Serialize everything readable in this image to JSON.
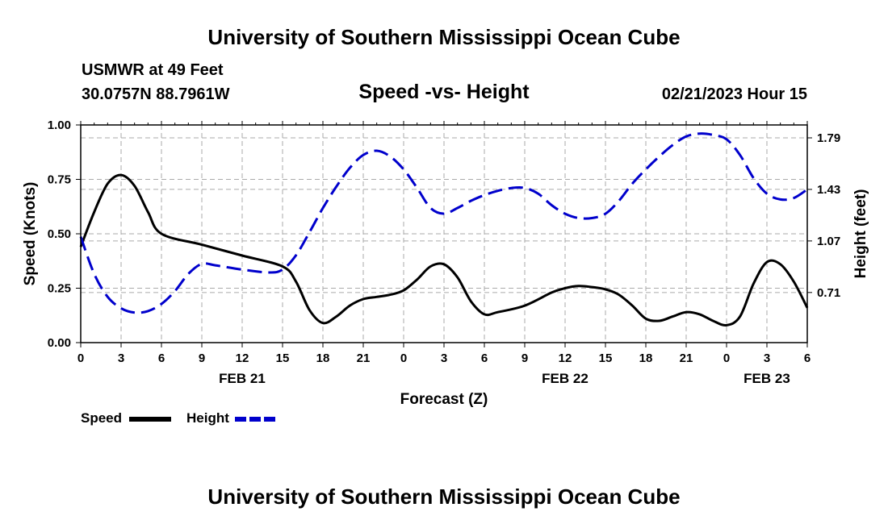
{
  "header": {
    "title": "University of Southern Mississippi Ocean Cube",
    "station": "USMWR at 49 Feet",
    "coords": "30.0757N  88.7961W",
    "subtitle": "Speed -vs- Height",
    "datetime": "02/21/2023 Hour 15"
  },
  "footer": {
    "title": "University of Southern Mississippi Ocean Cube"
  },
  "colors": {
    "speed": "#000000",
    "height": "#0000cc",
    "grid": "#aaaaaa"
  },
  "chart_data": {
    "type": "line",
    "title": "Speed -vs- Height",
    "xlabel": "Forecast (Z)",
    "ylabel": "Speed (Knots)",
    "y2label": "Height (feet)",
    "xlim": [
      0,
      54
    ],
    "ylim": [
      0,
      1
    ],
    "y2lim": [
      0.36,
      1.88
    ],
    "x_ticks": [
      0,
      3,
      6,
      9,
      12,
      15,
      18,
      21,
      24,
      27,
      30,
      33,
      36,
      39,
      42,
      45,
      48,
      51,
      54
    ],
    "x_tick_labels": [
      "0",
      "3",
      "6",
      "9",
      "12",
      "15",
      "18",
      "21",
      "0",
      "3",
      "6",
      "9",
      "12",
      "15",
      "18",
      "21",
      "0",
      "3",
      "6"
    ],
    "date_labels": [
      {
        "x": 12,
        "label": "FEB 21"
      },
      {
        "x": 36,
        "label": "FEB 22"
      },
      {
        "x": 51,
        "label": "FEB 23"
      }
    ],
    "y_ticks": [
      0,
      0.25,
      0.5,
      0.75,
      1
    ],
    "y_tick_labels": [
      "0.00",
      "0.25",
      "0.50",
      "0.75",
      "1.00"
    ],
    "y2_ticks": [
      0.71,
      1.07,
      1.43,
      1.79
    ],
    "y2_tick_labels": [
      "0.71",
      "1.07",
      "1.43",
      "1.79"
    ],
    "series": [
      {
        "name": "Speed",
        "axis": "left",
        "style": "solid",
        "x": [
          0,
          1,
          2,
          3,
          4,
          5,
          6,
          9,
          12,
          15,
          16,
          17,
          18,
          19,
          20,
          21,
          22,
          23,
          24,
          25,
          26,
          27,
          28,
          29,
          30,
          31,
          33,
          35,
          36,
          37,
          38,
          39,
          40,
          41,
          42,
          43,
          44,
          45,
          46,
          47,
          48,
          49,
          50,
          51,
          52,
          53,
          54
        ],
        "values": [
          0.44,
          0.6,
          0.73,
          0.77,
          0.72,
          0.6,
          0.5,
          0.45,
          0.4,
          0.35,
          0.28,
          0.15,
          0.09,
          0.12,
          0.17,
          0.2,
          0.21,
          0.22,
          0.24,
          0.29,
          0.35,
          0.36,
          0.3,
          0.19,
          0.13,
          0.14,
          0.17,
          0.23,
          0.25,
          0.26,
          0.255,
          0.245,
          0.22,
          0.17,
          0.11,
          0.1,
          0.12,
          0.14,
          0.13,
          0.1,
          0.08,
          0.12,
          0.27,
          0.37,
          0.36,
          0.28,
          0.16
        ]
      },
      {
        "name": "Height",
        "axis": "right",
        "style": "dashed",
        "x": [
          0,
          1,
          2,
          3,
          4,
          5,
          6,
          7,
          8,
          9,
          10,
          12,
          14,
          15,
          16,
          17,
          18,
          19,
          20,
          21,
          22,
          23,
          24,
          25,
          26,
          27,
          28,
          29,
          30,
          31,
          32,
          33,
          34,
          35,
          36,
          37,
          38,
          39,
          40,
          41,
          42,
          43,
          44,
          45,
          46,
          47,
          48,
          49,
          50,
          51,
          52,
          53,
          54
        ],
        "values": [
          1.1,
          0.84,
          0.68,
          0.6,
          0.57,
          0.58,
          0.63,
          0.72,
          0.84,
          0.91,
          0.9,
          0.87,
          0.85,
          0.87,
          0.97,
          1.13,
          1.3,
          1.45,
          1.58,
          1.67,
          1.7,
          1.66,
          1.57,
          1.44,
          1.3,
          1.26,
          1.3,
          1.35,
          1.39,
          1.42,
          1.44,
          1.44,
          1.4,
          1.32,
          1.26,
          1.23,
          1.23,
          1.26,
          1.35,
          1.47,
          1.57,
          1.66,
          1.74,
          1.8,
          1.82,
          1.81,
          1.78,
          1.67,
          1.51,
          1.4,
          1.36,
          1.37,
          1.43
        ]
      }
    ],
    "legend": [
      {
        "name": "Speed",
        "style": "solid"
      },
      {
        "name": "Height",
        "style": "dashed"
      }
    ]
  }
}
